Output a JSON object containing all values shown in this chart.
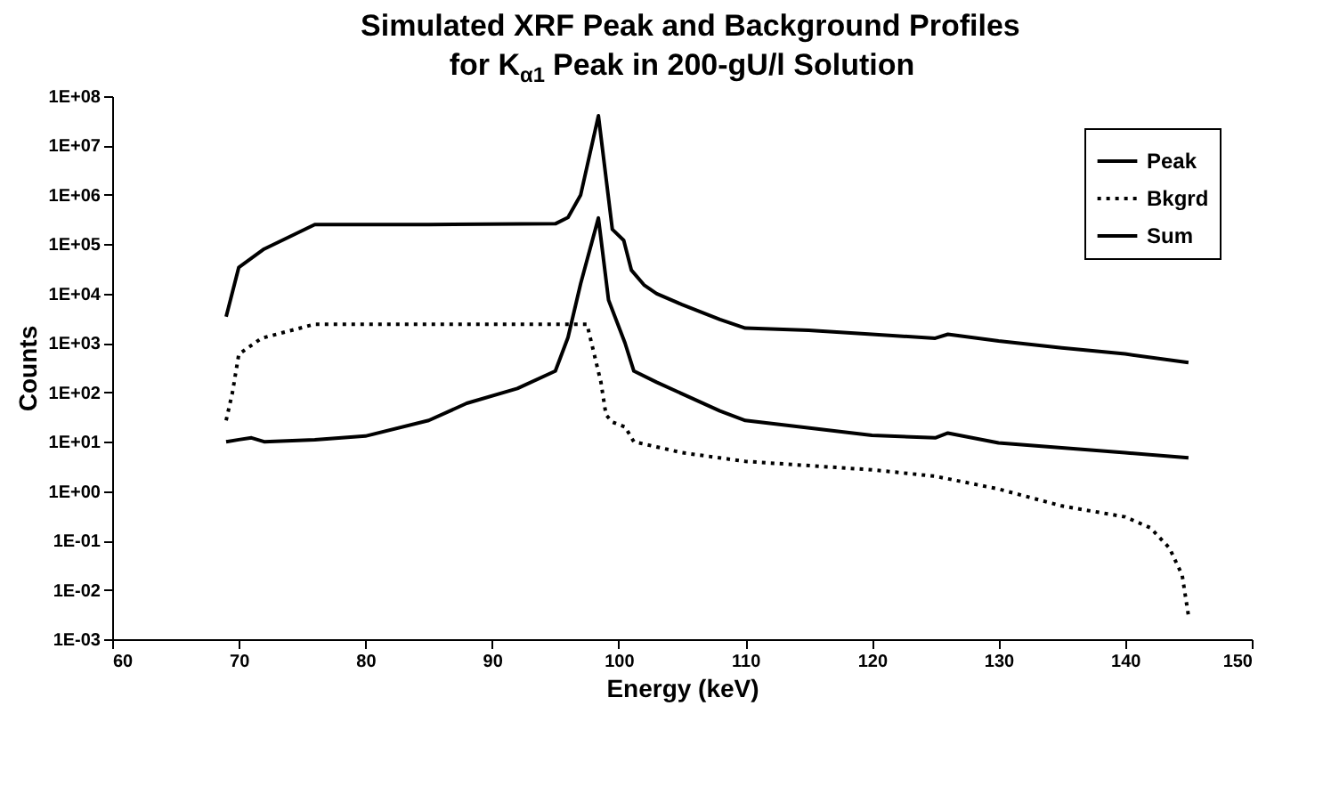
{
  "chart_data": {
    "type": "line",
    "title": [
      "Simulated XRF Peak and Background Profiles",
      "for K$_{α1}$ Peak in 200-gU/l Solution"
    ],
    "xlabel": "Energy (keV)",
    "ylabel": "Counts",
    "log": "y",
    "grid": false,
    "legend": "top right",
    "marker": "none",
    "xlim": [
      60,
      150
    ],
    "xticks": [
      60,
      70,
      80,
      90,
      100,
      110,
      120,
      130,
      140,
      150
    ],
    "ylim": [
      0.001,
      100000000
    ],
    "yticks": [
      {
        "value": 0.001,
        "label": "1E-03"
      },
      {
        "value": 0.01,
        "label": "1E-02"
      },
      {
        "value": 0.1,
        "label": "1E-01"
      },
      {
        "value": 1,
        "label": "1E+00"
      },
      {
        "value": 10,
        "label": "1E+01"
      },
      {
        "value": 100,
        "label": "1E+02"
      },
      {
        "value": 1000,
        "label": "1E+03"
      },
      {
        "value": 10000,
        "label": "1E+04"
      },
      {
        "value": 100000,
        "label": "1E+05"
      },
      {
        "value": 1000000,
        "label": "1E+06"
      },
      {
        "value": 10000000,
        "label": "1E+07"
      },
      {
        "value": 100000000,
        "label": "1E+08"
      }
    ],
    "series": [
      {
        "name": "Peak",
        "color": "#000000",
        "line_style": "solid",
        "x": [
          69,
          70,
          71,
          72,
          76,
          80,
          85,
          88,
          92,
          95,
          96,
          97,
          98.4,
          99.2,
          100.5,
          101.2,
          103,
          108,
          110,
          120,
          125,
          126,
          130,
          135,
          140,
          145
        ],
        "values": [
          10,
          11,
          12,
          10,
          11,
          13,
          27,
          60,
          120,
          270,
          1300,
          16000,
          340000,
          7400,
          1000,
          270,
          160,
          42,
          27,
          13.5,
          12,
          15,
          9.5,
          7.5,
          6,
          4.7
        ]
      },
      {
        "name": "Bkgrd",
        "color": "#000000",
        "line_style": "dotted",
        "x": [
          69,
          69.5,
          70,
          71.8,
          76,
          90,
          97.5,
          98.6,
          99,
          99.5,
          100.5,
          101.2,
          105,
          110,
          120,
          125,
          130,
          135,
          140,
          142,
          143.5,
          144.5,
          145
        ],
        "values": [
          27,
          100,
          590,
          1250,
          2400,
          2400,
          2400,
          160,
          35,
          25,
          20,
          10,
          6,
          4,
          2.7,
          2,
          1.1,
          0.5,
          0.3,
          0.18,
          0.07,
          0.02,
          0.003
        ]
      },
      {
        "name": "Sum",
        "color": "#000000",
        "line_style": "solid",
        "x": [
          69,
          70,
          72,
          76,
          85,
          95,
          96,
          97,
          98.4,
          99.5,
          100.4,
          101,
          102,
          103,
          105,
          108,
          110,
          115,
          120,
          125,
          126,
          130,
          135,
          140,
          145
        ],
        "values": [
          3400,
          34000,
          80000,
          250000,
          250000,
          260000,
          350000,
          1000000,
          40000000,
          200000,
          120000,
          30000,
          15000,
          10000,
          6000,
          3000,
          2000,
          1800,
          1500,
          1250,
          1500,
          1100,
          800,
          600,
          400
        ]
      }
    ]
  }
}
